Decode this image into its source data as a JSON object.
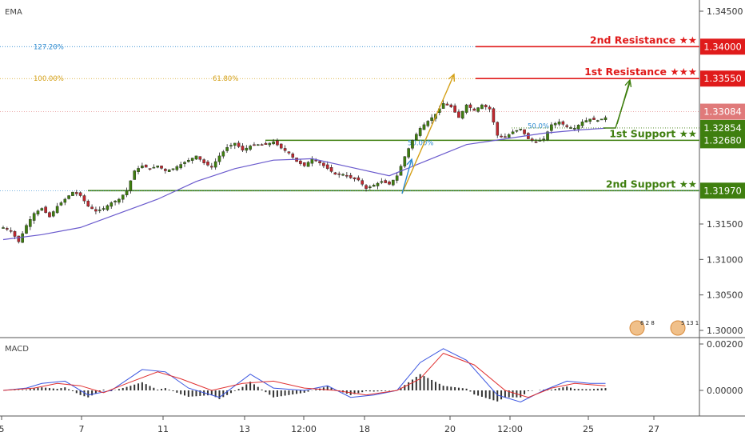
{
  "panes": {
    "main_label": "EMA",
    "macd_label": "MACD"
  },
  "colors": {
    "resistance": "#e01b1b",
    "support": "#3f7f0f",
    "current": "#e07a7a",
    "candle_up": "#3f7f0f",
    "candle_down": "#c0282f",
    "ema": "#6a5acd",
    "fib_gold": "#d4a017",
    "fib_blue": "#2e8bd0",
    "macd_line": "#3a55e0",
    "signal_line": "#e03030",
    "hist": "#333333"
  },
  "levels": [
    {
      "name": "2nd Resistance ★★",
      "price": 1.34,
      "price_label": "1.34000",
      "kind": "resistance"
    },
    {
      "name": "1st Resistance ★★★",
      "price": 1.3355,
      "price_label": "1.33550",
      "kind": "resistance"
    },
    {
      "name": "1st Support ★★",
      "price": 1.3268,
      "price_label": "1.32680",
      "kind": "support"
    },
    {
      "name": "2nd Support ★★",
      "price": 1.3197,
      "price_label": "1.31970",
      "kind": "support"
    }
  ],
  "markers": {
    "current_price": {
      "price": 1.33084,
      "label": "1.33084"
    },
    "ema_price": {
      "price": 1.32854,
      "label": "1.32854"
    }
  },
  "fib": {
    "left": [
      {
        "label": "127.20%",
        "price": 1.34
      },
      {
        "label": "100.00%",
        "price": 1.3355
      }
    ],
    "mid_label": "61.80%",
    "inner": [
      {
        "label": "50.00%",
        "price": 1.3268
      },
      {
        "label": "50.0%",
        "price": 1.3288
      }
    ]
  },
  "chart_data": {
    "type": "candlestick",
    "y_ticks": [
      "1.34500",
      "1.31500",
      "1.31000",
      "1.30500",
      "1.30000"
    ],
    "ylim": [
      1.2995,
      1.3455
    ],
    "x_ticks": [
      "5",
      "7",
      "11",
      "13",
      "12:00",
      "18",
      "20",
      "12:00",
      "25",
      "27"
    ],
    "macd_ticks": [
      "0.00200",
      "0.00000"
    ],
    "macd_ylim": [
      -0.0018,
      0.0023
    ],
    "event_badges": [
      "6 2 8",
      "5 13 1"
    ],
    "close_path": [
      [
        0,
        1.3145
      ],
      [
        2,
        1.314
      ],
      [
        4,
        1.3125
      ],
      [
        6,
        1.3148
      ],
      [
        8,
        1.3165
      ],
      [
        10,
        1.3172
      ],
      [
        12,
        1.316
      ],
      [
        14,
        1.3175
      ],
      [
        16,
        1.3185
      ],
      [
        18,
        1.3195
      ],
      [
        20,
        1.319
      ],
      [
        22,
        1.3175
      ],
      [
        24,
        1.3168
      ],
      [
        26,
        1.3172
      ],
      [
        28,
        1.318
      ],
      [
        30,
        1.3185
      ],
      [
        32,
        1.3197
      ],
      [
        34,
        1.3225
      ],
      [
        36,
        1.3232
      ],
      [
        38,
        1.3228
      ],
      [
        40,
        1.3232
      ],
      [
        42,
        1.3225
      ],
      [
        44,
        1.3228
      ],
      [
        46,
        1.3234
      ],
      [
        48,
        1.324
      ],
      [
        50,
        1.3246
      ],
      [
        52,
        1.3236
      ],
      [
        54,
        1.323
      ],
      [
        56,
        1.3246
      ],
      [
        58,
        1.3258
      ],
      [
        60,
        1.3264
      ],
      [
        62,
        1.3254
      ],
      [
        64,
        1.326
      ],
      [
        66,
        1.3262
      ],
      [
        68,
        1.3262
      ],
      [
        70,
        1.3266
      ],
      [
        72,
        1.3257
      ],
      [
        74,
        1.325
      ],
      [
        76,
        1.3238
      ],
      [
        78,
        1.3232
      ],
      [
        80,
        1.3242
      ],
      [
        82,
        1.3236
      ],
      [
        84,
        1.3228
      ],
      [
        86,
        1.322
      ],
      [
        88,
        1.322
      ],
      [
        90,
        1.3215
      ],
      [
        92,
        1.3212
      ],
      [
        94,
        1.32
      ],
      [
        96,
        1.3205
      ],
      [
        98,
        1.321
      ],
      [
        100,
        1.3206
      ],
      [
        102,
        1.3218
      ],
      [
        104,
        1.3245
      ],
      [
        106,
        1.3268
      ],
      [
        108,
        1.3285
      ],
      [
        110,
        1.3295
      ],
      [
        112,
        1.3305
      ],
      [
        114,
        1.332
      ],
      [
        116,
        1.3315
      ],
      [
        118,
        1.33
      ],
      [
        120,
        1.3318
      ],
      [
        122,
        1.331
      ],
      [
        124,
        1.3318
      ],
      [
        126,
        1.3312
      ],
      [
        128,
        1.3275
      ],
      [
        130,
        1.3272
      ],
      [
        132,
        1.328
      ],
      [
        134,
        1.3284
      ],
      [
        136,
        1.327
      ],
      [
        138,
        1.3266
      ],
      [
        140,
        1.327
      ],
      [
        142,
        1.329
      ],
      [
        144,
        1.3294
      ],
      [
        146,
        1.3287
      ],
      [
        148,
        1.3285
      ],
      [
        150,
        1.3294
      ],
      [
        152,
        1.3298
      ],
      [
        154,
        1.3296
      ],
      [
        156,
        1.33
      ]
    ],
    "ema_path": [
      [
        0,
        1.3128
      ],
      [
        10,
        1.3135
      ],
      [
        20,
        1.3145
      ],
      [
        30,
        1.3165
      ],
      [
        40,
        1.3185
      ],
      [
        50,
        1.321
      ],
      [
        60,
        1.3228
      ],
      [
        70,
        1.324
      ],
      [
        80,
        1.3242
      ],
      [
        90,
        1.323
      ],
      [
        100,
        1.3218
      ],
      [
        110,
        1.324
      ],
      [
        120,
        1.3262
      ],
      [
        130,
        1.327
      ],
      [
        140,
        1.3278
      ],
      [
        150,
        1.3283
      ],
      [
        156,
        1.3285
      ]
    ],
    "macd_path": [
      [
        0,
        0.0
      ],
      [
        6,
        0.0001
      ],
      [
        10,
        0.0003
      ],
      [
        16,
        0.0004
      ],
      [
        22,
        -0.0002
      ],
      [
        28,
        0.0
      ],
      [
        36,
        0.0009
      ],
      [
        42,
        0.0008
      ],
      [
        48,
        0.0001
      ],
      [
        56,
        -0.0003
      ],
      [
        64,
        0.0007
      ],
      [
        70,
        0.0001
      ],
      [
        78,
        0.0
      ],
      [
        84,
        0.0002
      ],
      [
        90,
        -0.0003
      ],
      [
        96,
        -0.0002
      ],
      [
        102,
        0.0
      ],
      [
        108,
        0.0012
      ],
      [
        114,
        0.0018
      ],
      [
        120,
        0.0013
      ],
      [
        128,
        -0.0002
      ],
      [
        134,
        -0.0005
      ],
      [
        140,
        0.0
      ],
      [
        146,
        0.0004
      ],
      [
        152,
        0.0003
      ],
      [
        156,
        0.0003
      ]
    ],
    "signal_path": [
      [
        0,
        0.0
      ],
      [
        8,
        0.0001
      ],
      [
        14,
        0.0003
      ],
      [
        20,
        0.0002
      ],
      [
        26,
        -0.0001
      ],
      [
        32,
        0.0003
      ],
      [
        40,
        0.0008
      ],
      [
        46,
        0.0005
      ],
      [
        54,
        0.0
      ],
      [
        62,
        0.0003
      ],
      [
        70,
        0.0004
      ],
      [
        78,
        0.0001
      ],
      [
        86,
        0.0
      ],
      [
        94,
        -0.0002
      ],
      [
        102,
        0.0
      ],
      [
        108,
        0.0005
      ],
      [
        114,
        0.0016
      ],
      [
        122,
        0.0011
      ],
      [
        130,
        0.0
      ],
      [
        136,
        -0.0003
      ],
      [
        142,
        0.0001
      ],
      [
        148,
        0.0003
      ],
      [
        156,
        0.0002
      ]
    ]
  }
}
